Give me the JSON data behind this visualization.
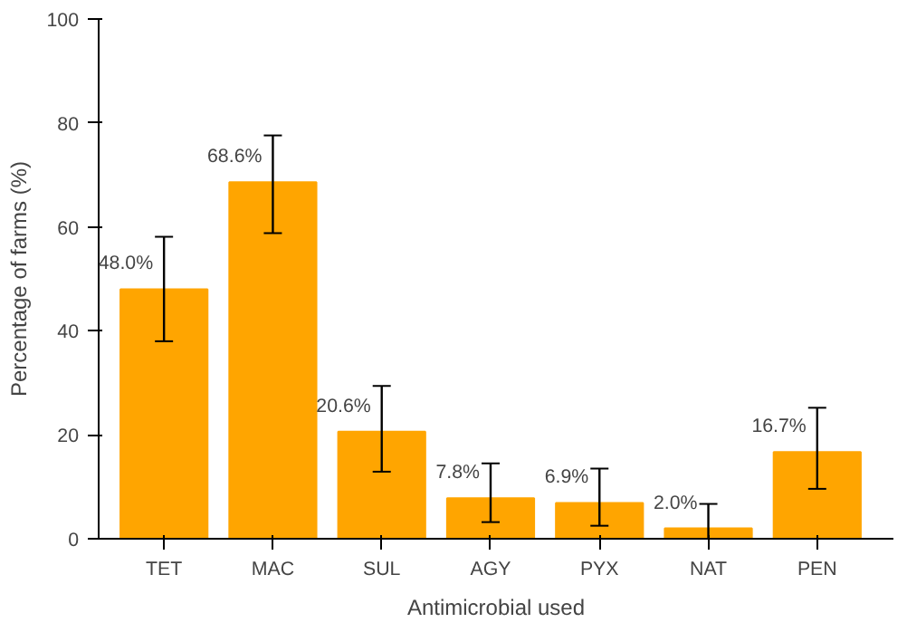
{
  "chart_data": {
    "type": "bar",
    "xlabel": "Antimicrobial used",
    "ylabel": "Percentage of farms (%)",
    "categories": [
      "TET",
      "MAC",
      "SUL",
      "AGY",
      "PYX",
      "NAT",
      "PEN"
    ],
    "values": [
      48.0,
      68.6,
      20.6,
      7.8,
      6.9,
      2.0,
      16.7
    ],
    "value_labels": [
      "48.0%",
      "68.6%",
      "20.6%",
      "7.8%",
      "6.9%",
      "2.0%",
      "16.7%"
    ],
    "errors": [
      [
        38.0,
        58.1
      ],
      [
        58.8,
        77.6
      ],
      [
        12.9,
        29.4
      ],
      [
        3.2,
        14.5
      ],
      [
        2.5,
        13.5
      ],
      [
        0,
        6.7
      ],
      [
        9.6,
        25.2
      ]
    ],
    "color": "#ffa500",
    "ylim": [
      0,
      100
    ],
    "yticks": [
      0,
      20,
      40,
      60,
      80,
      100
    ],
    "grid": false
  }
}
